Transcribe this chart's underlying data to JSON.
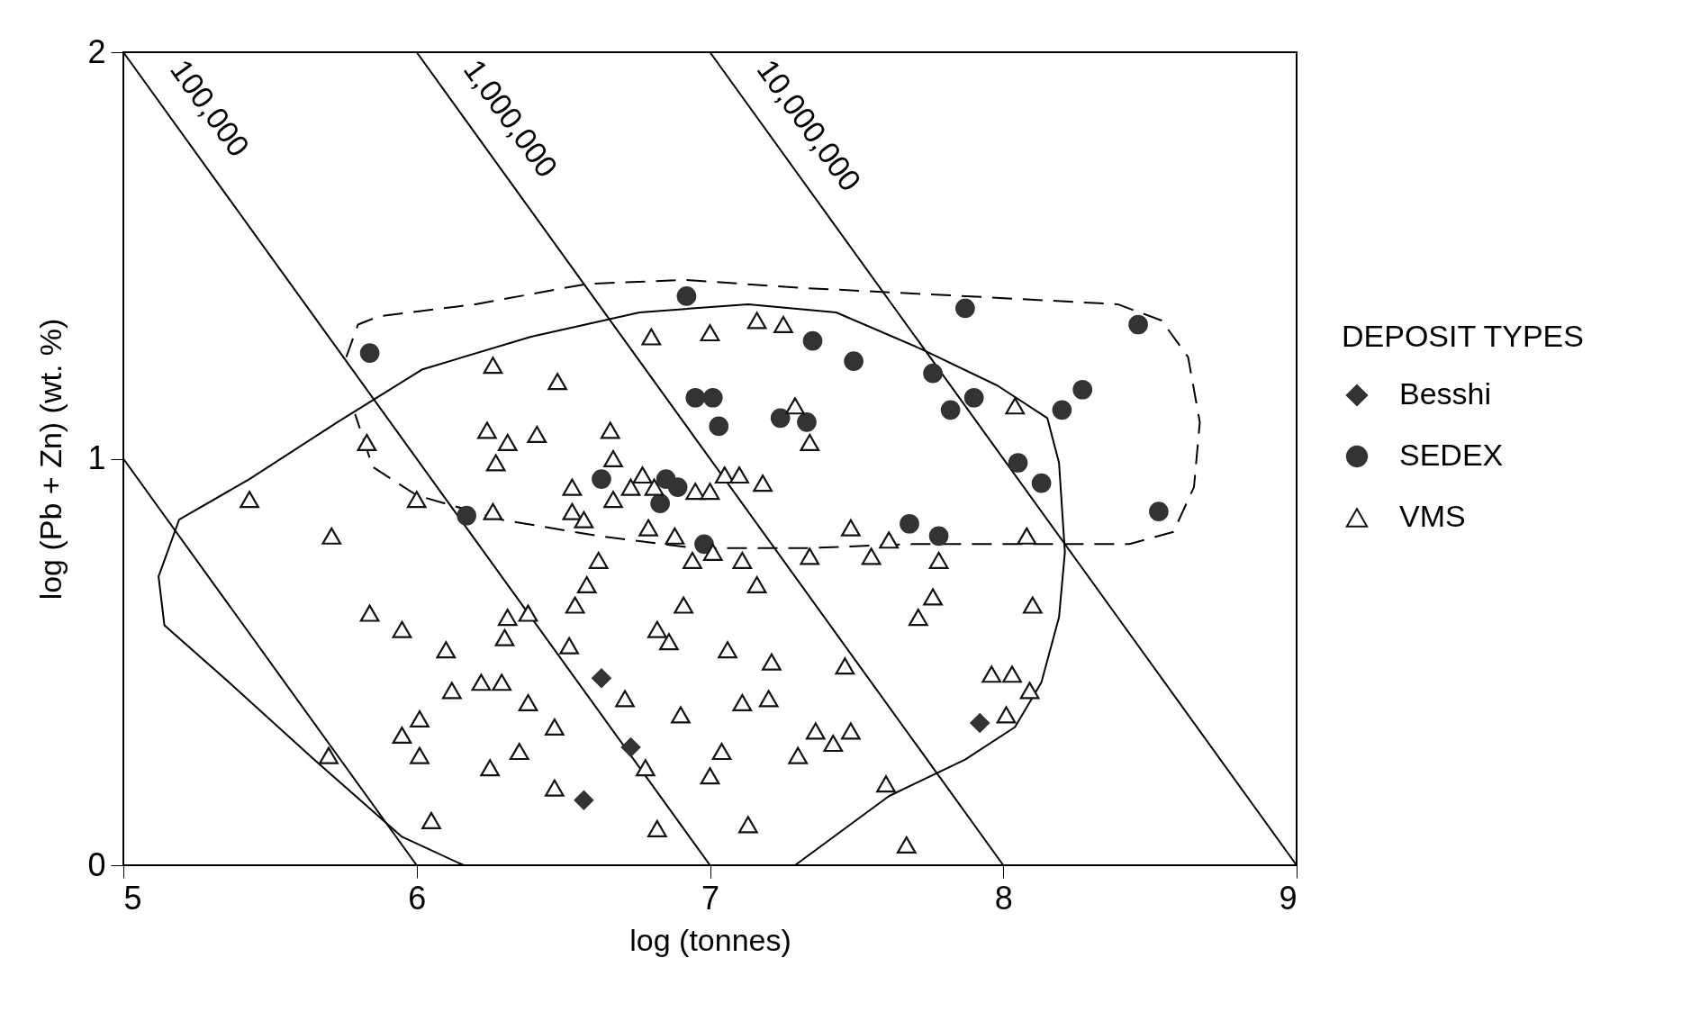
{
  "chart_data": {
    "type": "scatter",
    "xlabel": "log (tonnes)",
    "ylabel": "log (Pb + Zn)  (wt. %)",
    "legend_title": "DEPOSIT TYPES",
    "legend": "right",
    "grid": false,
    "xlim": [
      5,
      9
    ],
    "ylim": [
      0,
      2
    ],
    "xticks": [
      5,
      6,
      7,
      8,
      9
    ],
    "yticks": [
      0,
      1,
      2
    ],
    "annotations": [
      "100,000",
      "1,000,000",
      "10,000,000"
    ],
    "series": [
      {
        "name": "Besshi",
        "type": "scatter",
        "marker": "diamond",
        "color": "#333333",
        "x": [
          6.63,
          6.73,
          6.57,
          7.92
        ],
        "values": [
          0.46,
          0.29,
          0.16,
          0.35
        ]
      },
      {
        "name": "SEDEX",
        "type": "scatter",
        "marker": "circle",
        "color": "#333333",
        "x": [
          5.84,
          6.92,
          7.87,
          8.46,
          7.35,
          7.49,
          7.76,
          6.95,
          7.01,
          7.03,
          7.24,
          7.33,
          7.82,
          7.9,
          8.27,
          8.2,
          8.05,
          8.13,
          8.53,
          6.17,
          6.63,
          6.85,
          6.89,
          6.83,
          6.98,
          7.68,
          7.78
        ],
        "values": [
          1.26,
          1.4,
          1.37,
          1.33,
          1.29,
          1.24,
          1.21,
          1.15,
          1.15,
          1.08,
          1.1,
          1.09,
          1.12,
          1.15,
          1.17,
          1.12,
          0.99,
          0.94,
          0.87,
          0.86,
          0.95,
          0.95,
          0.93,
          0.89,
          0.79,
          0.84,
          0.81
        ]
      },
      {
        "name": "VMS",
        "type": "scatter",
        "marker": "triangle",
        "color": "#111111",
        "x": [
          5.43,
          5.71,
          5.83,
          6.26,
          6.48,
          6.24,
          6.31,
          6.41,
          6.27,
          6.26,
          6.0,
          6.53,
          6.53,
          6.57,
          6.66,
          6.67,
          6.67,
          6.77,
          6.73,
          6.81,
          6.79,
          6.8,
          7.0,
          7.16,
          7.25,
          7.29,
          7.34,
          6.95,
          7.0,
          7.05,
          7.1,
          7.18,
          6.88,
          6.94,
          7.01,
          7.11,
          7.16,
          7.34,
          7.48,
          7.55,
          7.61,
          7.78,
          7.76,
          7.71,
          8.04,
          8.08,
          8.1,
          6.62,
          6.58,
          6.54,
          6.31,
          6.38,
          6.3,
          5.84,
          5.95,
          6.1,
          6.52,
          6.91,
          6.82,
          6.86,
          7.06,
          7.21,
          6.12,
          6.22,
          6.29,
          6.38,
          6.47,
          6.71,
          6.9,
          7.11,
          7.2,
          7.46,
          6.01,
          5.95,
          6.01,
          6.35,
          6.25,
          5.7,
          6.05,
          6.47,
          6.78,
          7.04,
          7.0,
          7.3,
          7.36,
          7.42,
          7.48,
          7.6,
          6.82,
          7.13,
          7.67,
          7.96,
          8.03,
          8.09,
          8.01
        ],
        "values": [
          0.9,
          0.81,
          1.04,
          1.23,
          1.19,
          1.07,
          1.04,
          1.06,
          0.99,
          0.87,
          0.9,
          0.93,
          0.87,
          0.85,
          1.07,
          1.0,
          0.9,
          0.96,
          0.93,
          0.93,
          0.83,
          1.3,
          1.31,
          1.34,
          1.33,
          1.13,
          1.04,
          0.92,
          0.92,
          0.96,
          0.96,
          0.94,
          0.81,
          0.75,
          0.77,
          0.75,
          0.69,
          0.76,
          0.83,
          0.76,
          0.8,
          0.75,
          0.66,
          0.61,
          1.13,
          0.81,
          0.64,
          0.75,
          0.69,
          0.64,
          0.61,
          0.62,
          0.56,
          0.62,
          0.58,
          0.53,
          0.54,
          0.64,
          0.58,
          0.55,
          0.53,
          0.5,
          0.43,
          0.45,
          0.45,
          0.4,
          0.34,
          0.41,
          0.37,
          0.4,
          0.41,
          0.49,
          0.36,
          0.32,
          0.27,
          0.28,
          0.24,
          0.27,
          0.11,
          0.19,
          0.24,
          0.28,
          0.22,
          0.27,
          0.33,
          0.3,
          0.33,
          0.2,
          0.09,
          0.1,
          0.05,
          0.47,
          0.47,
          0.43,
          0.37
        ]
      },
      {
        "type": "line",
        "line_style": "solid",
        "color": "#000000",
        "x": [
          5,
          6
        ],
        "values": [
          1,
          0
        ]
      },
      {
        "type": "line",
        "line_style": "solid",
        "color": "#000000",
        "x": [
          5,
          7
        ],
        "values": [
          2,
          0
        ]
      },
      {
        "type": "line",
        "line_style": "solid",
        "color": "#000000",
        "x": [
          6,
          8
        ],
        "values": [
          2,
          0
        ]
      },
      {
        "type": "line",
        "line_style": "solid",
        "color": "#000000",
        "x": [
          7,
          9
        ],
        "values": [
          2,
          0
        ]
      },
      {
        "type": "line",
        "line_style": "solid",
        "color": "#000000",
        "x": [
          6.16,
          5.95,
          5.65,
          5.36,
          5.14,
          5.12,
          5.19,
          5.43,
          5.73,
          6.02,
          6.39,
          6.76,
          7.13,
          7.43,
          7.72,
          7.98,
          8.15,
          8.19,
          8.21,
          8.19,
          8.13,
          8.04,
          7.87,
          7.61,
          7.29
        ],
        "values": [
          0,
          0.07,
          0.26,
          0.45,
          0.59,
          0.71,
          0.85,
          0.95,
          1.09,
          1.22,
          1.3,
          1.36,
          1.38,
          1.36,
          1.27,
          1.18,
          1.1,
          0.99,
          0.77,
          0.61,
          0.45,
          0.34,
          0.26,
          0.17,
          0
        ]
      },
      {
        "type": "line",
        "line_style": "dashed",
        "color": "#000000",
        "x": [
          5.76,
          5.8,
          5.87,
          6.2,
          6.58,
          6.91,
          7.32,
          7.87,
          8.39,
          8.54,
          8.63,
          8.67,
          8.65,
          8.58,
          8.43,
          8.06,
          7.69,
          7.32,
          6.95,
          6.62,
          6.29,
          6.0,
          5.85,
          5.79
        ],
        "values": [
          1.25,
          1.33,
          1.35,
          1.38,
          1.43,
          1.44,
          1.42,
          1.4,
          1.38,
          1.34,
          1.25,
          1.09,
          0.93,
          0.82,
          0.79,
          0.79,
          0.79,
          0.78,
          0.78,
          0.81,
          0.85,
          0.91,
          0.98,
          1.11
        ]
      }
    ]
  }
}
